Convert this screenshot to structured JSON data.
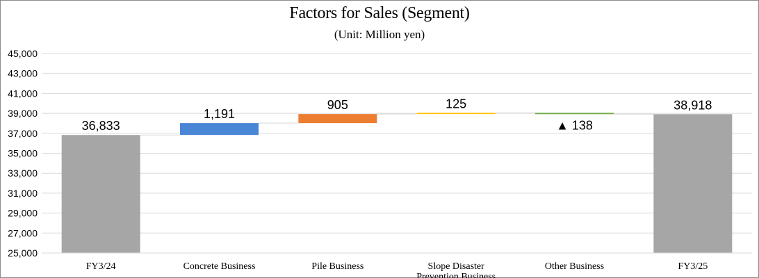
{
  "chart_data": {
    "type": "bar",
    "subtype": "waterfall",
    "title": "Factors for Sales (Segment)",
    "subtitle": "(Unit: Million yen)",
    "categories": [
      [
        "FY3/24"
      ],
      [
        "Concrete Business"
      ],
      [
        "Pile Business"
      ],
      [
        "Slope Disaster",
        "Prevention Business"
      ],
      [
        "Other Business"
      ],
      [
        "FY3/25"
      ]
    ],
    "steps": [
      {
        "kind": "total",
        "value": 36833,
        "label": "36,833",
        "color": "#a6a6a6"
      },
      {
        "kind": "delta",
        "value": 1191,
        "label": "1,191",
        "color": "#4a86d6"
      },
      {
        "kind": "delta",
        "value": 905,
        "label": "905",
        "color": "#ed7d31"
      },
      {
        "kind": "delta",
        "value": 125,
        "label": "125",
        "color": "#ffc000"
      },
      {
        "kind": "delta",
        "value": -138,
        "label": "▲ 138",
        "color": "#70ad47"
      },
      {
        "kind": "total",
        "value": 38918,
        "label": "38,918",
        "color": "#a6a6a6"
      }
    ],
    "ylim": [
      25000,
      45000
    ],
    "yticks": [
      "25,000",
      "27,000",
      "29,000",
      "31,000",
      "33,000",
      "35,000",
      "37,000",
      "39,000",
      "41,000",
      "43,000",
      "45,000"
    ],
    "ytick_values": [
      25000,
      27000,
      29000,
      31000,
      33000,
      35000,
      37000,
      39000,
      41000,
      43000,
      45000
    ],
    "grid": true,
    "gridline_color": "#d9d9d9",
    "connector_color": "#d9d9d9"
  }
}
